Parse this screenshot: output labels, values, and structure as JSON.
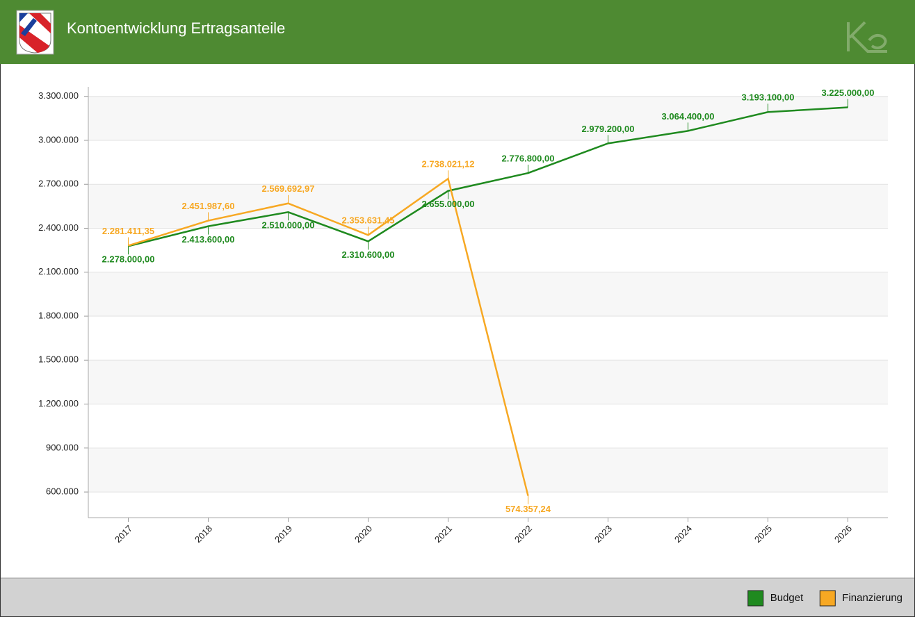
{
  "chart_data": {
    "type": "line",
    "title": "Kontoentwicklung Ertragsanteile",
    "categories": [
      "2017",
      "2018",
      "2019",
      "2020",
      "2021",
      "2022",
      "2023",
      "2024",
      "2025",
      "2026"
    ],
    "series": [
      {
        "name": "Budget",
        "color": "#1f8a1f",
        "values": [
          2278000,
          2413600,
          2510000,
          2310600,
          2655000,
          2776800,
          2979200,
          3064400,
          3193100,
          3225000
        ],
        "value_labels": [
          "2.278.000,00",
          "2.413.600,00",
          "2.510.000,00",
          "2.310.600,00",
          "2.655.000,00",
          "2.776.800,00",
          "2.979.200,00",
          "3.064.400,00",
          "3.193.100,00",
          "3.225.000,00"
        ]
      },
      {
        "name": "Finanzierung",
        "color": "#f7a823",
        "values": [
          2281411.35,
          2451987.6,
          2569692.97,
          2353631.45,
          2738021.12,
          574357.24,
          null,
          null,
          null,
          null
        ],
        "value_labels": [
          "2.281.411,35",
          "2.451.987,60",
          "2.569.692,97",
          "2.353.631,45",
          "2.738.021,12",
          "574.357,24",
          null,
          null,
          null,
          null
        ]
      }
    ],
    "ylim": [
      425000,
      3365000
    ],
    "yticks": [
      {
        "value": 600000,
        "label": "600.000"
      },
      {
        "value": 900000,
        "label": "900.000"
      },
      {
        "value": 1200000,
        "label": "1.200.000"
      },
      {
        "value": 1500000,
        "label": "1.500.000"
      },
      {
        "value": 1800000,
        "label": "1.800.000"
      },
      {
        "value": 2100000,
        "label": "2.100.000"
      },
      {
        "value": 2400000,
        "label": "2.400.000"
      },
      {
        "value": 2700000,
        "label": "2.700.000"
      },
      {
        "value": 3000000,
        "label": "3.000.000"
      },
      {
        "value": 3300000,
        "label": "3.300.000"
      }
    ],
    "grid": true,
    "legend": "bottom-right"
  }
}
